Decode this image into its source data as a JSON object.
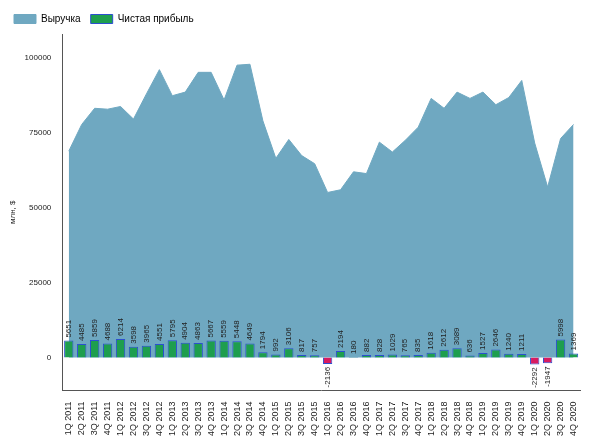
{
  "chart_data": {
    "type": "bar",
    "y_label": "млн, $",
    "categories": [
      "1Q 2011",
      "2Q 2011",
      "3Q 2011",
      "4Q 2011",
      "1Q 2012",
      "2Q 2012",
      "3Q 2012",
      "4Q 2012",
      "1Q 2013",
      "2Q 2013",
      "3Q 2013",
      "4Q 2013",
      "1Q 2014",
      "2Q 2014",
      "3Q 2014",
      "4Q 2014",
      "1Q 2015",
      "2Q 2015",
      "3Q 2015",
      "4Q 2015",
      "1Q 2016",
      "2Q 2016",
      "3Q 2016",
      "4Q 2016",
      "1Q 2017",
      "2Q 2017",
      "3Q 2017",
      "4Q 2017",
      "1Q 2018",
      "2Q 2018",
      "3Q 2018",
      "4Q 2018",
      "1Q 2019",
      "2Q 2019",
      "3Q 2019",
      "4Q 2019",
      "1Q 2020",
      "2Q 2020",
      "3Q 2020",
      "4Q 2020"
    ],
    "series": [
      {
        "name": "Выручка",
        "type": "area",
        "color": "#6fa8c1",
        "values": [
          68900,
          77800,
          83200,
          82900,
          83800,
          79600,
          88000,
          96100,
          87400,
          88600,
          95200,
          95200,
          86000,
          97600,
          97900,
          79000,
          66500,
          72800,
          67400,
          64700,
          55100,
          56000,
          62000,
          61400,
          71900,
          68600,
          72500,
          76900,
          86500,
          83200,
          88600,
          86500,
          88600,
          84400,
          86800,
          92500,
          71600,
          56900,
          73100,
          77800
        ]
      },
      {
        "name": "Чистая прибыль",
        "type": "bar",
        "color": "#1e9e4e",
        "data_labels": true,
        "colors": [
          "#1e9e4e",
          "#1e9e4e",
          "#1e9e4e",
          "#1e9e4e",
          "#1e9e4e",
          "#1e9e4e",
          "#1e9e4e",
          "#1e9e4e",
          "#1e9e4e",
          "#1e9e4e",
          "#1e9e4e",
          "#1e9e4e",
          "#1e9e4e",
          "#1e9e4e",
          "#1e9e4e",
          "#1e9e4e",
          "#1e9e4e",
          "#1e9e4e",
          "#1e9e4e",
          "#1e9e4e",
          "#d81b60",
          "#1e9e4e",
          "#1e9e4e",
          "#1e9e4e",
          "#1e9e4e",
          "#1e9e4e",
          "#1e9e4e",
          "#1e9e4e",
          "#1e9e4e",
          "#1e9e4e",
          "#1e9e4e",
          "#1e9e4e",
          "#1e9e4e",
          "#1e9e4e",
          "#1e9e4e",
          "#1e9e4e",
          "#d81b60",
          "#d81b60",
          "#1e9e4e",
          "#1e9e4e"
        ],
        "values": [
          5651,
          4485,
          5859,
          4688,
          6214,
          3598,
          3965,
          4551,
          5795,
          4904,
          4863,
          5667,
          5559,
          5448,
          4649,
          1794,
          992,
          3106,
          817,
          757,
          -2136,
          2194,
          180,
          882,
          828,
          1029,
          765,
          835,
          1618,
          2612,
          3089,
          636,
          1527,
          2646,
          1240,
          1211,
          -2292,
          -1947,
          5998,
          1369
        ]
      }
    ],
    "ylim": [
      -11000,
      108000
    ],
    "yticks": [
      0,
      25000,
      50000,
      75000,
      100000
    ],
    "grid": false,
    "legend": "upper left"
  }
}
